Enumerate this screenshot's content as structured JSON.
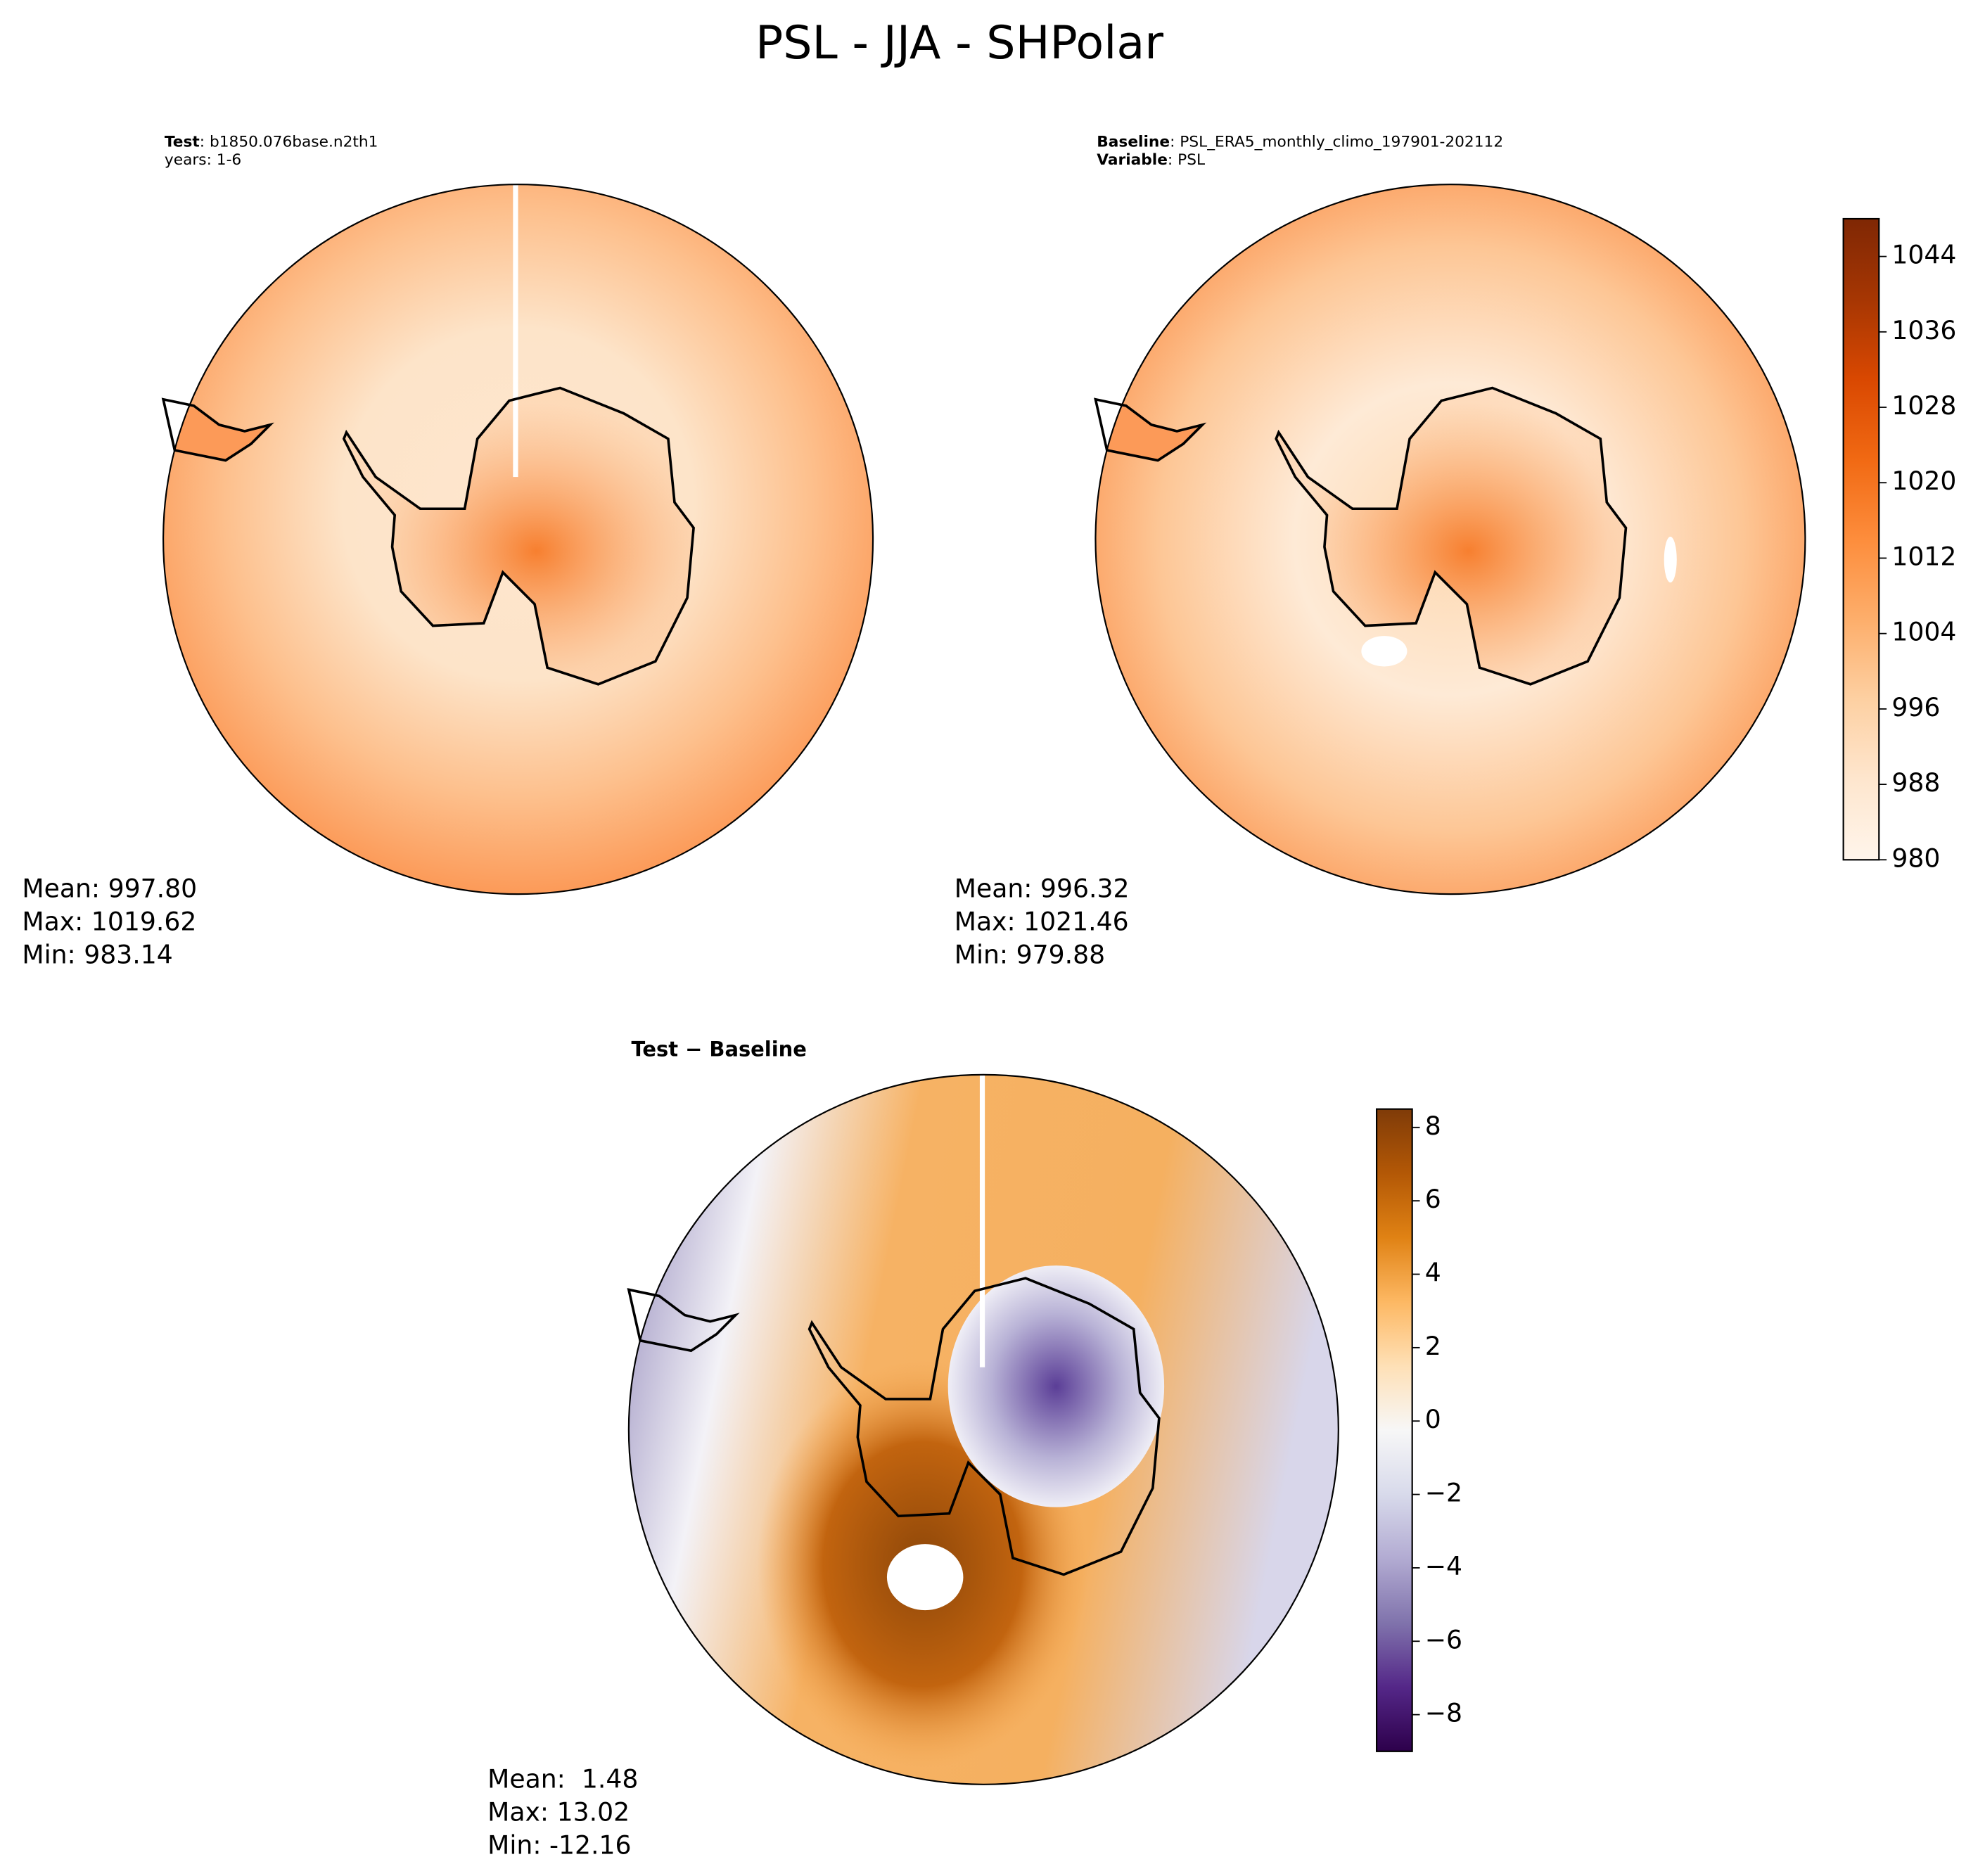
{
  "figure_title": "PSL - JJA - SHPolar",
  "chart_data": [
    {
      "type": "polar-map",
      "header": [
        {
          "key": "Test",
          "text": ": b1850.076base.n2th1"
        },
        {
          "text": "years: 1-6"
        }
      ],
      "stats": [
        "Mean: 997.80",
        "Max: 1019.62",
        "Min: 983.14"
      ]
    },
    {
      "type": "polar-map",
      "header": [
        {
          "key": "Baseline",
          "text": ": PSL_ERA5_monthly_climo_197901-202112"
        },
        {
          "key": "Variable",
          "text": ": PSL"
        }
      ],
      "stats": [
        "Mean: 996.32",
        "Max: 1021.46",
        "Min: 979.88"
      ],
      "colorbar": {
        "colormap": "Oranges",
        "ylim": [
          980,
          1048
        ],
        "yticks": [
          980,
          988,
          996,
          1004,
          1012,
          1020,
          1028,
          1036,
          1044
        ]
      }
    },
    {
      "type": "polar-map",
      "header": [
        {
          "key": "Test − Baseline"
        }
      ],
      "stats": [
        "Mean:  1.48",
        "Max: 13.02",
        "Min: -12.16"
      ],
      "colorbar": {
        "colormap": "PuOr_r",
        "ylim": [
          -9,
          8.5
        ],
        "yticks": [
          {
            "value": -8,
            "label": "−8"
          },
          {
            "value": -6,
            "label": "−6"
          },
          {
            "value": -4,
            "label": "−4"
          },
          {
            "value": -2,
            "label": "−2"
          },
          0,
          2,
          4,
          6,
          8
        ]
      }
    }
  ]
}
